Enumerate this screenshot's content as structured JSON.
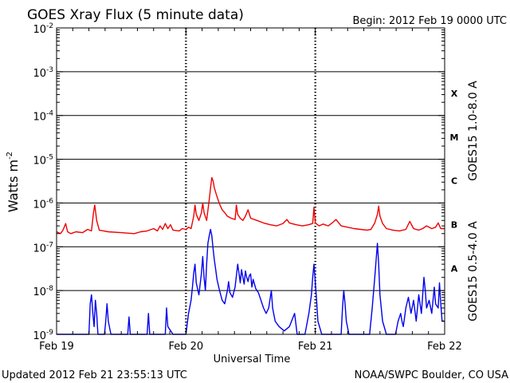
{
  "chart_data": {
    "type": "line",
    "title": "GOES Xray Flux (5 minute data)",
    "begin_label": "Begin:  2012 Feb 19 0000 UTC",
    "ylabel": "Watts m",
    "ylabel_sup": "-2",
    "xlabel": "Universal Time",
    "yscale": "log",
    "ylim": [
      1e-09,
      0.01
    ],
    "y_tick_labels": [
      {
        "value": 0.01,
        "base": "10",
        "exp": "-2"
      },
      {
        "value": 0.001,
        "base": "10",
        "exp": "-3"
      },
      {
        "value": 0.0001,
        "base": "10",
        "exp": "-4"
      },
      {
        "value": 1e-05,
        "base": "10",
        "exp": "-5"
      },
      {
        "value": 1e-06,
        "base": "10",
        "exp": "-6"
      },
      {
        "value": 1e-07,
        "base": "10",
        "exp": "-7"
      },
      {
        "value": 1e-08,
        "base": "10",
        "exp": "-8"
      },
      {
        "value": 1e-09,
        "base": "10",
        "exp": "-9"
      }
    ],
    "xlim_days": [
      0,
      3
    ],
    "x_tick_labels": [
      {
        "day": 0,
        "label": "Feb 19"
      },
      {
        "day": 1,
        "label": "Feb 20"
      },
      {
        "day": 2,
        "label": "Feb 21"
      },
      {
        "day": 3,
        "label": "Feb 22"
      }
    ],
    "flare_classes": [
      {
        "label": "X",
        "value": 0.00032
      },
      {
        "label": "M",
        "value": 3.2e-05
      },
      {
        "label": "C",
        "value": 3.2e-06
      },
      {
        "label": "B",
        "value": 3.2e-07
      },
      {
        "label": "A",
        "value": 3.2e-08
      }
    ],
    "grid": true,
    "series": [
      {
        "name": "GOES15 1.0-8.0 A",
        "color": "#ee0000",
        "points": [
          [
            0.0,
            2.2e-07
          ],
          [
            0.03,
            2e-07
          ],
          [
            0.05,
            2.4e-07
          ],
          [
            0.07,
            3.4e-07
          ],
          [
            0.085,
            2.2e-07
          ],
          [
            0.11,
            2e-07
          ],
          [
            0.15,
            2.2e-07
          ],
          [
            0.2,
            2.1e-07
          ],
          [
            0.24,
            2.5e-07
          ],
          [
            0.27,
            2.3e-07
          ],
          [
            0.285,
            6e-07
          ],
          [
            0.295,
            9e-07
          ],
          [
            0.31,
            4e-07
          ],
          [
            0.33,
            2.4e-07
          ],
          [
            0.4,
            2.2e-07
          ],
          [
            0.5,
            2.1e-07
          ],
          [
            0.6,
            2e-07
          ],
          [
            0.65,
            2.2e-07
          ],
          [
            0.7,
            2.3e-07
          ],
          [
            0.75,
            2.6e-07
          ],
          [
            0.78,
            2.3e-07
          ],
          [
            0.8,
            3e-07
          ],
          [
            0.82,
            2.5e-07
          ],
          [
            0.84,
            3.4e-07
          ],
          [
            0.86,
            2.6e-07
          ],
          [
            0.88,
            3.2e-07
          ],
          [
            0.9,
            2.4e-07
          ],
          [
            0.95,
            2.3e-07
          ],
          [
            0.97,
            2.6e-07
          ],
          [
            1.0,
            2.5e-07
          ],
          [
            1.02,
            2.8e-07
          ],
          [
            1.04,
            2.6e-07
          ],
          [
            1.06,
            5e-07
          ],
          [
            1.07,
            9e-07
          ],
          [
            1.08,
            5.5e-07
          ],
          [
            1.1,
            4e-07
          ],
          [
            1.12,
            6e-07
          ],
          [
            1.13,
            1e-06
          ],
          [
            1.14,
            6e-07
          ],
          [
            1.16,
            4e-07
          ],
          [
            1.18,
            1.2e-06
          ],
          [
            1.19,
            2.2e-06
          ],
          [
            1.2,
            3.8e-06
          ],
          [
            1.21,
            3.2e-06
          ],
          [
            1.22,
            2.2e-06
          ],
          [
            1.24,
            1.4e-06
          ],
          [
            1.26,
            9.5e-07
          ],
          [
            1.28,
            7e-07
          ],
          [
            1.3,
            6e-07
          ],
          [
            1.32,
            5e-07
          ],
          [
            1.35,
            4.5e-07
          ],
          [
            1.38,
            4.2e-07
          ],
          [
            1.39,
            9e-07
          ],
          [
            1.4,
            5.5e-07
          ],
          [
            1.42,
            4.5e-07
          ],
          [
            1.44,
            4e-07
          ],
          [
            1.46,
            5e-07
          ],
          [
            1.48,
            7e-07
          ],
          [
            1.5,
            4.5e-07
          ],
          [
            1.55,
            4e-07
          ],
          [
            1.6,
            3.5e-07
          ],
          [
            1.65,
            3.2e-07
          ],
          [
            1.7,
            3e-07
          ],
          [
            1.75,
            3.4e-07
          ],
          [
            1.78,
            4.2e-07
          ],
          [
            1.8,
            3.5e-07
          ],
          [
            1.85,
            3.2e-07
          ],
          [
            1.9,
            3e-07
          ],
          [
            1.95,
            3.2e-07
          ],
          [
            1.98,
            3.4e-07
          ],
          [
            1.99,
            8e-07
          ],
          [
            2.0,
            3.5e-07
          ],
          [
            2.03,
            3e-07
          ],
          [
            2.06,
            3.3e-07
          ],
          [
            2.1,
            3e-07
          ],
          [
            2.13,
            3.5e-07
          ],
          [
            2.16,
            4.2e-07
          ],
          [
            2.2,
            3e-07
          ],
          [
            2.25,
            2.8e-07
          ],
          [
            2.3,
            2.6e-07
          ],
          [
            2.35,
            2.5e-07
          ],
          [
            2.4,
            2.4e-07
          ],
          [
            2.43,
            2.5e-07
          ],
          [
            2.46,
            3.5e-07
          ],
          [
            2.48,
            5.5e-07
          ],
          [
            2.49,
            8.5e-07
          ],
          [
            2.5,
            5e-07
          ],
          [
            2.52,
            3.4e-07
          ],
          [
            2.55,
            2.6e-07
          ],
          [
            2.6,
            2.4e-07
          ],
          [
            2.65,
            2.3e-07
          ],
          [
            2.7,
            2.5e-07
          ],
          [
            2.73,
            3.8e-07
          ],
          [
            2.76,
            2.6e-07
          ],
          [
            2.8,
            2.4e-07
          ],
          [
            2.83,
            2.6e-07
          ],
          [
            2.86,
            3e-07
          ],
          [
            2.9,
            2.6e-07
          ],
          [
            2.93,
            2.8e-07
          ],
          [
            2.95,
            3.5e-07
          ],
          [
            2.97,
            2.6e-07
          ],
          [
            3.0,
            2.6e-07
          ]
        ]
      },
      {
        "name": "GOES15 0.5-4.0 A",
        "color": "#0000ee",
        "points": [
          [
            0.0,
            1e-09
          ],
          [
            0.25,
            1e-09
          ],
          [
            0.26,
            5e-09
          ],
          [
            0.27,
            8e-09
          ],
          [
            0.28,
            3e-09
          ],
          [
            0.29,
            1.5e-09
          ],
          [
            0.3,
            6e-09
          ],
          [
            0.31,
            3e-09
          ],
          [
            0.32,
            1e-09
          ],
          [
            0.37,
            1e-09
          ],
          [
            0.38,
            2e-09
          ],
          [
            0.39,
            5e-09
          ],
          [
            0.4,
            2e-09
          ],
          [
            0.42,
            1e-09
          ],
          [
            0.55,
            1e-09
          ],
          [
            0.56,
            2.5e-09
          ],
          [
            0.57,
            1e-09
          ],
          [
            0.7,
            1e-09
          ],
          [
            0.71,
            3e-09
          ],
          [
            0.72,
            1e-09
          ],
          [
            0.84,
            1e-09
          ],
          [
            0.85,
            4e-09
          ],
          [
            0.86,
            1.5e-09
          ],
          [
            0.9,
            1e-09
          ],
          [
            1.0,
            1e-09
          ],
          [
            1.02,
            3e-09
          ],
          [
            1.04,
            6e-09
          ],
          [
            1.05,
            1.2e-08
          ],
          [
            1.06,
            2.5e-08
          ],
          [
            1.07,
            4e-08
          ],
          [
            1.08,
            1.5e-08
          ],
          [
            1.1,
            8e-09
          ],
          [
            1.12,
            2.5e-08
          ],
          [
            1.13,
            6e-08
          ],
          [
            1.14,
            2e-08
          ],
          [
            1.15,
            1e-08
          ],
          [
            1.16,
            4e-08
          ],
          [
            1.17,
            1.2e-07
          ],
          [
            1.18,
            1.8e-07
          ],
          [
            1.19,
            2.5e-07
          ],
          [
            1.2,
            1.8e-07
          ],
          [
            1.21,
            9e-08
          ],
          [
            1.22,
            5e-08
          ],
          [
            1.23,
            3e-08
          ],
          [
            1.24,
            1.8e-08
          ],
          [
            1.26,
            1e-08
          ],
          [
            1.28,
            6e-09
          ],
          [
            1.3,
            5e-09
          ],
          [
            1.32,
            1e-08
          ],
          [
            1.33,
            1.6e-08
          ],
          [
            1.34,
            9e-09
          ],
          [
            1.36,
            7e-09
          ],
          [
            1.38,
            1.2e-08
          ],
          [
            1.4,
            4e-08
          ],
          [
            1.41,
            2.5e-08
          ],
          [
            1.42,
            1.5e-08
          ],
          [
            1.43,
            3e-08
          ],
          [
            1.44,
            2e-08
          ],
          [
            1.45,
            1.4e-08
          ],
          [
            1.46,
            2.8e-08
          ],
          [
            1.47,
            2e-08
          ],
          [
            1.48,
            1.6e-08
          ],
          [
            1.49,
            2.2e-08
          ],
          [
            1.5,
            2.4e-08
          ],
          [
            1.51,
            1.2e-08
          ],
          [
            1.52,
            1.8e-08
          ],
          [
            1.54,
            1.1e-08
          ],
          [
            1.56,
            9e-09
          ],
          [
            1.58,
            6e-09
          ],
          [
            1.6,
            4e-09
          ],
          [
            1.62,
            3e-09
          ],
          [
            1.64,
            4e-09
          ],
          [
            1.66,
            1e-08
          ],
          [
            1.67,
            4e-09
          ],
          [
            1.69,
            2e-09
          ],
          [
            1.72,
            1.5e-09
          ],
          [
            1.76,
            1.2e-09
          ],
          [
            1.8,
            1.5e-09
          ],
          [
            1.84,
            3e-09
          ],
          [
            1.86,
            1e-09
          ],
          [
            1.92,
            1e-09
          ],
          [
            1.95,
            3e-09
          ],
          [
            1.97,
            8e-09
          ],
          [
            1.98,
            2e-08
          ],
          [
            1.99,
            4e-08
          ],
          [
            2.0,
            1.5e-08
          ],
          [
            2.01,
            6e-09
          ],
          [
            2.02,
            2e-09
          ],
          [
            2.05,
            1e-09
          ],
          [
            2.2,
            1e-09
          ],
          [
            2.21,
            4e-09
          ],
          [
            2.22,
            1e-08
          ],
          [
            2.23,
            5e-09
          ],
          [
            2.24,
            2e-09
          ],
          [
            2.26,
            1e-09
          ],
          [
            2.42,
            1e-09
          ],
          [
            2.44,
            4e-09
          ],
          [
            2.46,
            2e-08
          ],
          [
            2.47,
            5e-08
          ],
          [
            2.48,
            1.2e-07
          ],
          [
            2.49,
            4e-08
          ],
          [
            2.5,
            8e-09
          ],
          [
            2.52,
            2e-09
          ],
          [
            2.55,
            1e-09
          ],
          [
            2.62,
            1e-09
          ],
          [
            2.64,
            2e-09
          ],
          [
            2.66,
            3e-09
          ],
          [
            2.67,
            2e-09
          ],
          [
            2.68,
            1.5e-09
          ],
          [
            2.7,
            4e-09
          ],
          [
            2.72,
            7e-09
          ],
          [
            2.74,
            3e-09
          ],
          [
            2.76,
            6e-09
          ],
          [
            2.78,
            2e-09
          ],
          [
            2.8,
            8e-09
          ],
          [
            2.82,
            3e-09
          ],
          [
            2.84,
            2e-08
          ],
          [
            2.85,
            1e-08
          ],
          [
            2.86,
            4e-09
          ],
          [
            2.88,
            6e-09
          ],
          [
            2.9,
            3e-09
          ],
          [
            2.92,
            1.2e-08
          ],
          [
            2.93,
            5e-09
          ],
          [
            2.95,
            4e-09
          ],
          [
            2.96,
            1.5e-08
          ],
          [
            2.97,
            5e-09
          ],
          [
            2.98,
            2e-09
          ],
          [
            3.0,
            2e-09
          ]
        ]
      }
    ]
  },
  "footer": {
    "updated": "Updated 2012 Feb 21 23:55:13 UTC",
    "credit": "NOAA/SWPC Boulder, CO USA"
  }
}
